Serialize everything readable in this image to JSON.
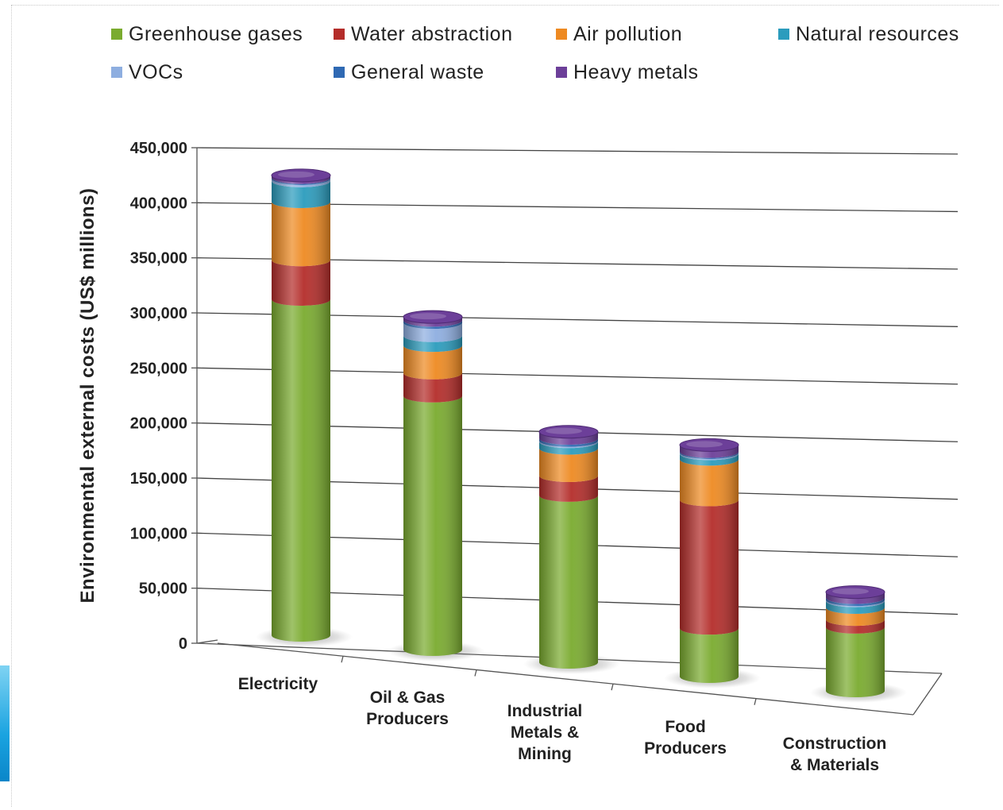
{
  "chart_data": {
    "type": "bar",
    "stacked": true,
    "style": "3d-cylinder",
    "ylabel": "Environmental external costs  (US$ millions)",
    "xlabel": "",
    "ylim": [
      0,
      450000
    ],
    "yticks": [
      0,
      50000,
      100000,
      150000,
      200000,
      250000,
      300000,
      350000,
      400000,
      450000
    ],
    "ytick_labels": [
      "0",
      "50,000",
      "100,000",
      "150,000",
      "200,000",
      "250,000",
      "300,000",
      "350,000",
      "400,000",
      "450,000"
    ],
    "categories": [
      [
        "Electricity"
      ],
      [
        "Oil & Gas",
        "Producers"
      ],
      [
        "Industrial",
        "Metals &",
        "Mining"
      ],
      [
        "Food",
        "Producers"
      ],
      [
        "Construction",
        "& Materials"
      ]
    ],
    "legend_position": "top",
    "series": [
      {
        "name": "Greenhouse gases",
        "color": "#7aab2f",
        "values": [
          306000,
          231000,
          152000,
          44000,
          58000
        ]
      },
      {
        "name": "Water abstraction",
        "color": "#b42d2a",
        "values": [
          36000,
          21000,
          18000,
          117000,
          7000
        ]
      },
      {
        "name": "Air pollution",
        "color": "#ee8a22",
        "values": [
          53000,
          25000,
          25000,
          37000,
          11000
        ]
      },
      {
        "name": "Natural resources",
        "color": "#2b9cbd",
        "values": [
          19000,
          9000,
          6000,
          5000,
          6000
        ]
      },
      {
        "name": "VOCs",
        "color": "#8eaee0",
        "values": [
          2000,
          12000,
          1000,
          1000,
          1000
        ]
      },
      {
        "name": "General waste",
        "color": "#2f69b3",
        "values": [
          1000,
          2000,
          2000,
          1000,
          2000
        ]
      },
      {
        "name": "Heavy metals",
        "color": "#6c3f99",
        "values": [
          2000,
          3000,
          6000,
          6000,
          5000
        ]
      }
    ]
  }
}
